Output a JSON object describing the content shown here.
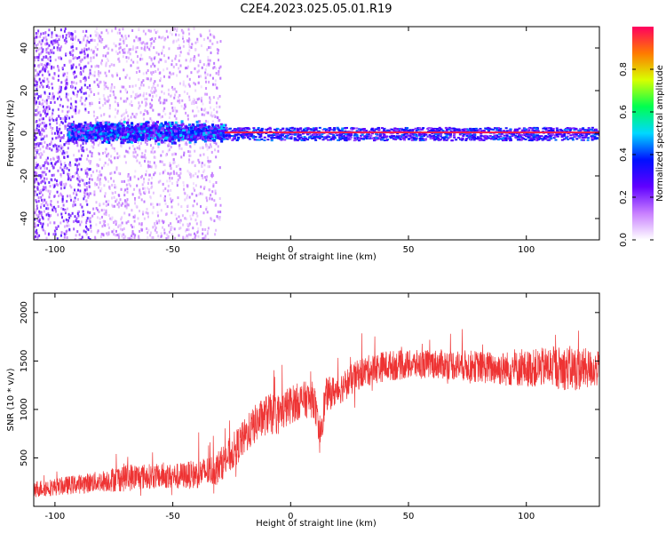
{
  "title": "C2E4.2023.025.05.01.R19",
  "colors": {
    "snr_line": "#ee3333",
    "colormap": [
      "#ffffff",
      "#c87fff",
      "#6000ff",
      "#0010ff",
      "#00d8ff",
      "#00ff50",
      "#d8ff00",
      "#ff7a00",
      "#ff0060"
    ]
  },
  "chart_data": [
    {
      "type": "heatmap",
      "xlabel": "Height of straight line (km)",
      "ylabel": "Frequency (Hz)",
      "xlim": [
        -109,
        131
      ],
      "ylim": [
        -50,
        50
      ],
      "x_ticks": [
        -100,
        -50,
        0,
        50,
        100
      ],
      "y_ticks": [
        -40,
        -20,
        0,
        20,
        40
      ],
      "colorbar": {
        "label": "Normalized spectral amplitude",
        "range": [
          0,
          1
        ],
        "ticks": [
          0.0,
          0.2,
          0.4,
          0.6,
          0.8
        ]
      },
      "features": [
        {
          "description": "scattered low-amplitude noise",
          "x_range": [
            -109,
            -30
          ],
          "freq_range": [
            -50,
            50
          ],
          "amplitude": 0.15
        },
        {
          "description": "broad main band",
          "x_range": [
            -95,
            -28
          ],
          "freq_range": [
            -6,
            8
          ],
          "amplitude": 0.4
        },
        {
          "description": "narrow tone",
          "x_range": [
            -28,
            131
          ],
          "freq_range": [
            0,
            0
          ],
          "amplitude": 0.97
        },
        {
          "description": "tone sidebands",
          "x_range": [
            -28,
            131
          ],
          "freq_range": [
            -3,
            3
          ],
          "amplitude": 0.35
        }
      ]
    },
    {
      "type": "line",
      "xlabel": "Height of straight line (km)",
      "ylabel": "SNR (10 * v/v)",
      "xlim": [
        -109,
        131
      ],
      "ylim": [
        0,
        2200
      ],
      "x_ticks": [
        -100,
        -50,
        0,
        50,
        100
      ],
      "y_ticks": [
        500,
        1000,
        1500,
        2000
      ],
      "series": [
        {
          "x": [
            -109,
            -100,
            -90,
            -80,
            -70,
            -60,
            -50,
            -40,
            -32,
            -25,
            -20,
            -15,
            -10,
            -5,
            0,
            5,
            10,
            12,
            15,
            20,
            30,
            40,
            50,
            60,
            70,
            80,
            90,
            100,
            110,
            120,
            131
          ],
          "values": [
            180,
            200,
            230,
            260,
            300,
            310,
            310,
            330,
            380,
            550,
            700,
            850,
            950,
            950,
            1050,
            1100,
            1100,
            700,
            1150,
            1200,
            1380,
            1450,
            1460,
            1470,
            1460,
            1440,
            1420,
            1420,
            1440,
            1420,
            1420
          ],
          "spread": [
            180,
            180,
            200,
            220,
            300,
            260,
            260,
            300,
            330,
            380,
            380,
            400,
            420,
            430,
            400,
            380,
            380,
            420,
            350,
            330,
            320,
            320,
            300,
            300,
            320,
            330,
            360,
            380,
            420,
            480,
            360
          ]
        }
      ]
    }
  ]
}
